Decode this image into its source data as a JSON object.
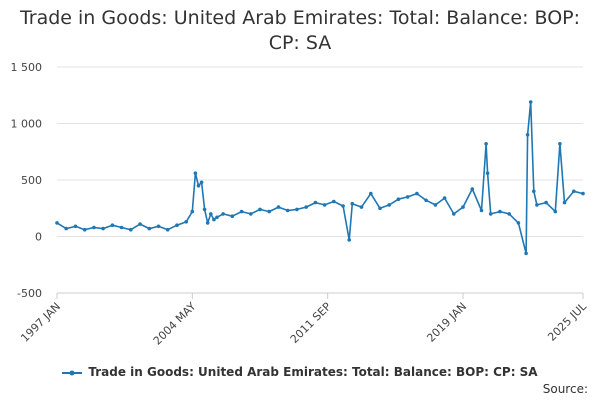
{
  "chart_data": {
    "type": "line",
    "title_lines": [
      "Trade in Goods: United Arab Emirates: Total: Balance: BOP:",
      "CP: SA"
    ],
    "x_ticks": [
      "1997 JAN",
      "2004 MAY",
      "2011 SEP",
      "2019 JAN",
      "2025 JUL"
    ],
    "y_ticks": [
      "1 500",
      "1 000",
      "500",
      "0",
      "-500"
    ],
    "ylim": [
      -500,
      1500
    ],
    "xlim": [
      "1997-01",
      "2025-07"
    ],
    "grid": "horizontal",
    "legend_position": "bottom",
    "color": "#1f77b4",
    "series": [
      {
        "name": "Trade in Goods: United Arab Emirates: Total: Balance: BOP: CP: SA",
        "x": [
          "1997-01",
          "1997-07",
          "1998-01",
          "1998-07",
          "1999-01",
          "1999-07",
          "2000-01",
          "2000-07",
          "2001-01",
          "2001-07",
          "2002-01",
          "2002-07",
          "2003-01",
          "2003-07",
          "2004-01",
          "2004-05",
          "2004-07",
          "2004-09",
          "2004-11",
          "2005-01",
          "2005-03",
          "2005-05",
          "2005-07",
          "2005-09",
          "2006-01",
          "2006-07",
          "2007-01",
          "2007-07",
          "2008-01",
          "2008-07",
          "2009-01",
          "2009-07",
          "2010-01",
          "2010-07",
          "2011-01",
          "2011-07",
          "2012-01",
          "2012-07",
          "2012-11",
          "2013-01",
          "2013-07",
          "2014-01",
          "2014-07",
          "2015-01",
          "2015-07",
          "2016-01",
          "2016-07",
          "2017-01",
          "2017-07",
          "2018-01",
          "2018-07",
          "2019-01",
          "2019-07",
          "2020-01",
          "2020-04",
          "2020-05",
          "2020-07",
          "2021-01",
          "2021-07",
          "2022-01",
          "2022-06",
          "2022-07",
          "2022-09",
          "2022-11",
          "2023-01",
          "2023-07",
          "2024-01",
          "2024-04",
          "2024-07",
          "2025-01",
          "2025-07"
        ],
        "values": [
          120,
          70,
          90,
          60,
          80,
          70,
          100,
          80,
          60,
          110,
          70,
          90,
          60,
          100,
          130,
          220,
          560,
          450,
          480,
          240,
          120,
          200,
          150,
          170,
          200,
          180,
          220,
          200,
          240,
          220,
          260,
          230,
          240,
          260,
          300,
          280,
          310,
          270,
          -30,
          290,
          260,
          380,
          250,
          280,
          330,
          350,
          380,
          320,
          280,
          340,
          200,
          260,
          420,
          230,
          820,
          560,
          200,
          220,
          200,
          120,
          -150,
          900,
          1190,
          400,
          280,
          300,
          220,
          820,
          300,
          400,
          380
        ]
      }
    ]
  },
  "source_label": "Source:"
}
